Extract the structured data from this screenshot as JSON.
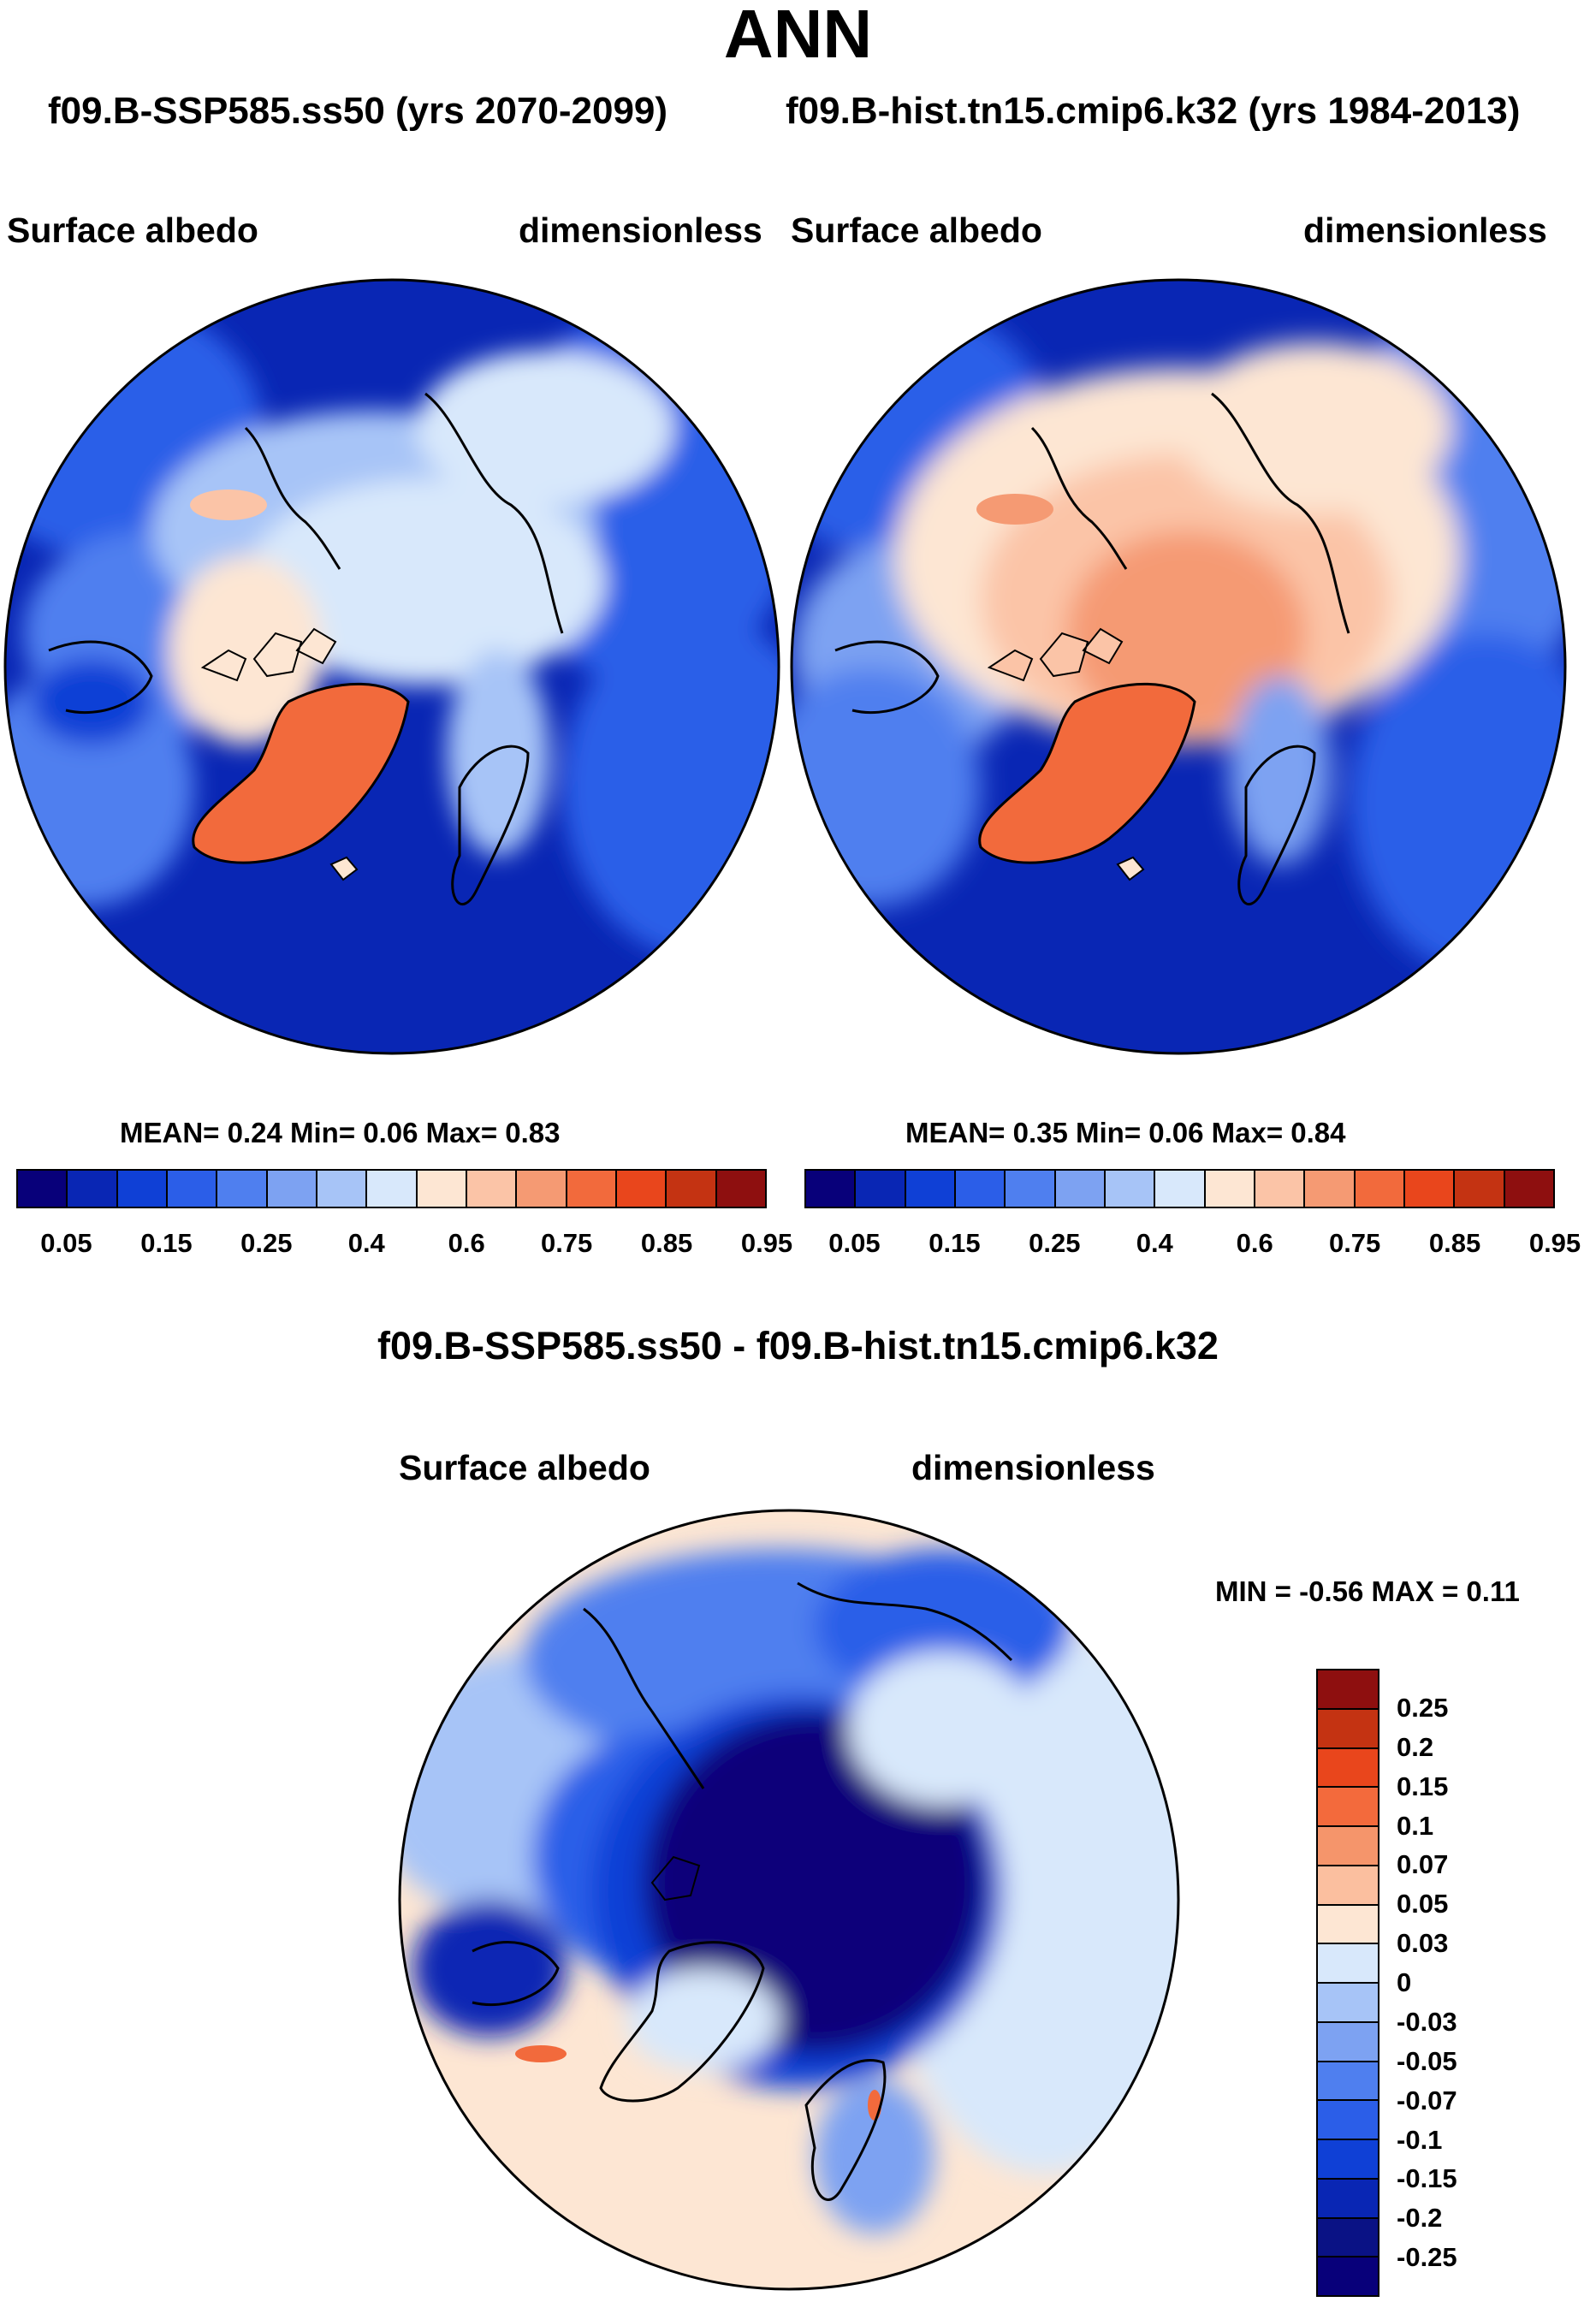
{
  "title": "ANN",
  "case_a_title": "f09.B-SSP585.ss50 (yrs 2070-2099)",
  "case_b_title": "f09.B-hist.tn15.cmip6.k32 (yrs 1984-2013)",
  "panels": [
    {
      "variable": "Surface albedo",
      "units": "dimensionless",
      "stats": "MEAN=   0.24  Min=   0.06  Max=   0.83",
      "description": "North polar stereographic map, future scenario"
    },
    {
      "variable": "Surface albedo",
      "units": "dimensionless",
      "stats": "MEAN=   0.35  Min=   0.06  Max=   0.84",
      "description": "North polar stereographic map, historical"
    }
  ],
  "abs_colorbar": {
    "colors": [
      "#08007a",
      "#0926b4",
      "#0f40d6",
      "#2b5ee8",
      "#4f7fef",
      "#7da2f2",
      "#a7c4f7",
      "#d8e8fb",
      "#fde6d3",
      "#fbc4a7",
      "#f59a73",
      "#f26a3c",
      "#e9461c",
      "#c43312",
      "#8e0f0f"
    ],
    "ticks": [
      "0.05",
      "0.15",
      "0.25",
      "0.4",
      "0.6",
      "0.75",
      "0.85",
      "0.95"
    ]
  },
  "diff": {
    "title": "f09.B-SSP585.ss50 - f09.B-hist.tn15.cmip6.k32",
    "variable": "Surface albedo",
    "units": "dimensionless",
    "minmax": "MIN =  -0.56 MAX =   0.11",
    "colors": [
      "#8e0f0f",
      "#c43312",
      "#e9461c",
      "#f36a3c",
      "#f5956b",
      "#fbbf9f",
      "#fde6d3",
      "#d8e8fb",
      "#a7c4f7",
      "#7da2f2",
      "#4f7fef",
      "#2b5ee8",
      "#0f40d6",
      "#0926b4",
      "#0a1285",
      "#08007a"
    ],
    "ticks": [
      "0.25",
      "0.2",
      "0.15",
      "0.1",
      "0.07",
      "0.05",
      "0.03",
      "0",
      "-0.03",
      "-0.05",
      "-0.07",
      "-0.1",
      "-0.15",
      "-0.2",
      "-0.25"
    ]
  }
}
